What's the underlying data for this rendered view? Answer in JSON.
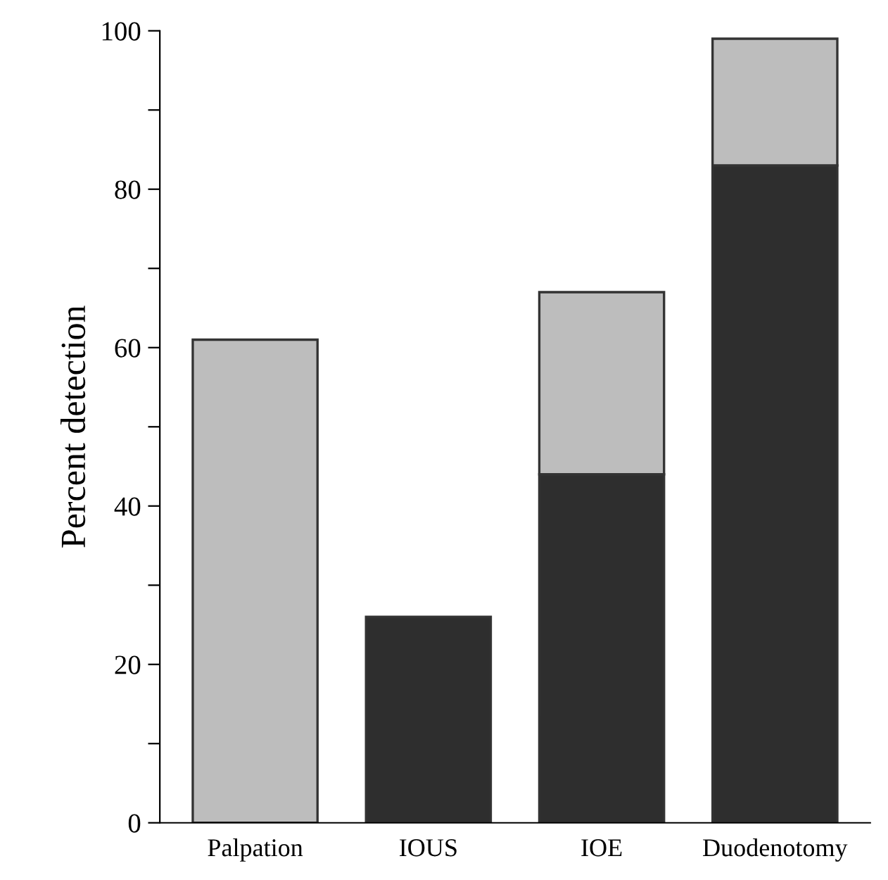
{
  "chart_data": {
    "type": "bar",
    "stacked": true,
    "ylabel": "Percent detection",
    "categories": [
      "Palpation",
      "IOUS",
      "IOE",
      "Duodenotomy"
    ],
    "series": [
      {
        "color": "#2e2e2e",
        "values": [
          0,
          26,
          44,
          83
        ]
      },
      {
        "color": "#bdbdbd",
        "values": [
          61,
          0,
          23,
          16
        ]
      }
    ],
    "ylim": [
      0,
      100
    ],
    "yticks": [
      0,
      {
        "value": 10,
        "label": null
      },
      20,
      {
        "value": 30,
        "label": null
      },
      40,
      {
        "value": 50,
        "label": null
      },
      60,
      {
        "value": 70,
        "label": null
      },
      80,
      {
        "value": 90,
        "label": null
      },
      100
    ],
    "grid": false,
    "legend": false
  }
}
